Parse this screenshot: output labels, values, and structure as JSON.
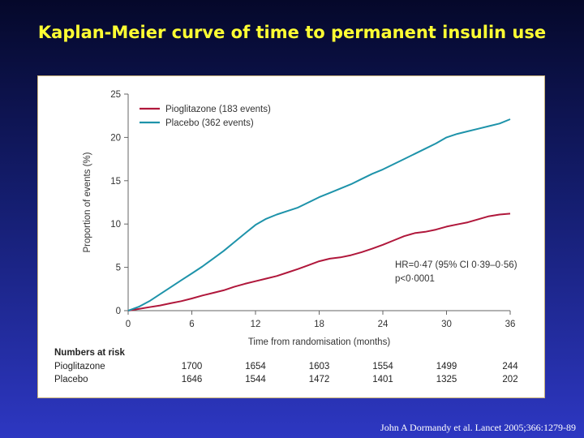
{
  "slide": {
    "title": "Kaplan-Meier curve of time to permanent insulin use",
    "citation": "John A Dormandy et al. Lancet 2005;366:1279-89"
  },
  "colors": {
    "pioglitazone": "#b0173b",
    "placebo": "#1e93aa",
    "title": "#ffff33"
  },
  "chart_data": {
    "type": "line",
    "title": "",
    "xlabel": "Time from randomisation (months)",
    "ylabel": "Proportion of events (%)",
    "xlim": [
      0,
      36
    ],
    "ylim": [
      0,
      25
    ],
    "xticks": [
      0,
      6,
      12,
      18,
      24,
      30,
      36
    ],
    "yticks": [
      0,
      5,
      10,
      15,
      20,
      25
    ],
    "grid": false,
    "legend_position": "top-left",
    "series": [
      {
        "name": "Pioglitazone (183 events)",
        "color": "#b0173b",
        "x": [
          0,
          1,
          2,
          3,
          4,
          5,
          6,
          7,
          8,
          9,
          10,
          11,
          12,
          13,
          14,
          15,
          16,
          17,
          18,
          19,
          20,
          21,
          22,
          23,
          24,
          25,
          26,
          27,
          28,
          29,
          30,
          31,
          32,
          33,
          34,
          35,
          36
        ],
        "y": [
          0,
          0.2,
          0.4,
          0.6,
          0.85,
          1.1,
          1.4,
          1.75,
          2.05,
          2.35,
          2.75,
          3.1,
          3.4,
          3.7,
          4.0,
          4.4,
          4.8,
          5.25,
          5.7,
          6.0,
          6.15,
          6.4,
          6.75,
          7.15,
          7.6,
          8.1,
          8.6,
          8.95,
          9.1,
          9.35,
          9.7,
          9.95,
          10.2,
          10.55,
          10.9,
          11.1,
          11.2
        ]
      },
      {
        "name": "Placebo (362 events)",
        "color": "#1e93aa",
        "x": [
          0,
          1,
          2,
          3,
          4,
          5,
          6,
          7,
          8,
          9,
          10,
          11,
          12,
          13,
          14,
          15,
          16,
          17,
          18,
          19,
          20,
          21,
          22,
          23,
          24,
          25,
          26,
          27,
          28,
          29,
          30,
          31,
          32,
          33,
          34,
          35,
          36
        ],
        "y": [
          0,
          0.45,
          1.1,
          1.9,
          2.7,
          3.5,
          4.3,
          5.1,
          6.0,
          6.9,
          7.9,
          8.9,
          9.9,
          10.6,
          11.1,
          11.5,
          11.9,
          12.5,
          13.1,
          13.6,
          14.1,
          14.6,
          15.2,
          15.8,
          16.3,
          16.9,
          17.5,
          18.1,
          18.7,
          19.3,
          20.0,
          20.4,
          20.7,
          21.0,
          21.3,
          21.6,
          22.1
        ]
      }
    ],
    "annotation": {
      "line1": "HR=0·47 (95% CI 0·39–0·56)",
      "line2": "p<0·0001"
    },
    "numbers_at_risk": {
      "heading": "Numbers at risk",
      "rows": [
        {
          "label": "Pioglitazone",
          "values": [
            "1700",
            "1654",
            "1603",
            "1554",
            "1499",
            "244"
          ]
        },
        {
          "label": "Placebo",
          "values": [
            "1646",
            "1544",
            "1472",
            "1401",
            "1325",
            "202"
          ]
        }
      ],
      "columns_x": [
        6,
        12,
        18,
        24,
        30,
        36
      ]
    }
  }
}
